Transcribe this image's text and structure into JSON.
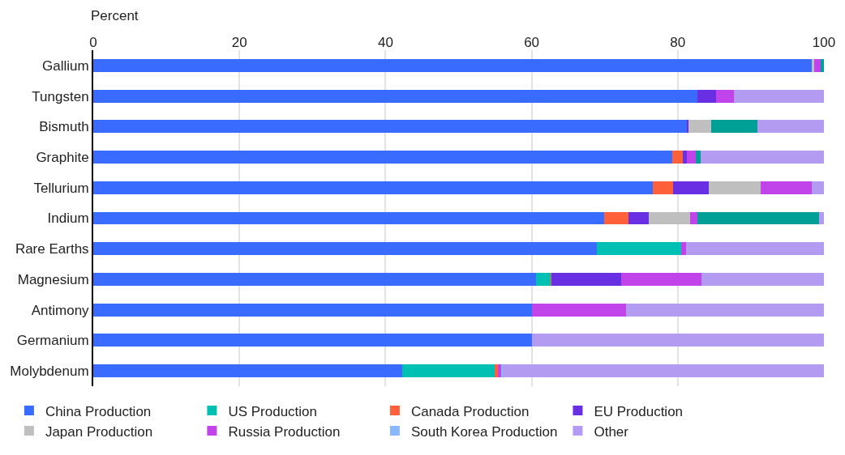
{
  "chart_data": {
    "type": "bar",
    "orientation": "horizontal",
    "stacked": true,
    "xlabel": "Percent",
    "categories": [
      "Gallium",
      "Tungsten",
      "Bismuth",
      "Graphite",
      "Tellurium",
      "Indium",
      "Rare Earths",
      "Magnesium",
      "Antimony",
      "Germanium",
      "Molybdenum"
    ],
    "series": [
      {
        "name": "China Production",
        "color": "#3a6bff",
        "values": [
          98.3,
          82.7,
          81.2,
          79.3,
          76.6,
          69.9,
          68.9,
          60.6,
          60.0,
          60.0,
          42.3
        ]
      },
      {
        "name": "US Production",
        "color": "#00bfb3",
        "values": [
          null,
          null,
          null,
          null,
          null,
          null,
          11.6,
          2.0,
          null,
          null,
          12.6
        ]
      },
      {
        "name": "Canada Production",
        "color": "#ff6039",
        "values": [
          null,
          null,
          null,
          1.4,
          2.8,
          3.3,
          null,
          0.1,
          null,
          null,
          0.5
        ]
      },
      {
        "name": "EU Production",
        "color": "#6930e3",
        "values": [
          null,
          2.5,
          0.3,
          0.5,
          4.8,
          2.8,
          null,
          9.6,
          null,
          null,
          null
        ]
      },
      {
        "name": "Japan Production",
        "color": "#bfbfbf",
        "values": [
          0.4,
          null,
          3.1,
          null,
          7.1,
          5.7,
          null,
          null,
          null,
          null,
          null
        ]
      },
      {
        "name": "Russia Production",
        "color": "#c044e9",
        "values": [
          0.9,
          2.5,
          null,
          1.3,
          7.0,
          1.0,
          0.6,
          10.9,
          12.9,
          null,
          0.5
        ]
      },
      {
        "name": "South Korea Production",
        "color": "#8ab8ff",
        "values": [
          null,
          null,
          null,
          null,
          null,
          null,
          null,
          null,
          null,
          null,
          0.2
        ]
      },
      {
        "color": "#00a096",
        "values": [
          0.4,
          null,
          6.3,
          0.6,
          null,
          16.6,
          null,
          null,
          null,
          null,
          null
        ]
      },
      {
        "name": "Other",
        "color": "#b39bf2",
        "values": [
          null,
          12.3,
          9.1,
          16.9,
          1.7,
          0.7,
          18.9,
          16.8,
          27.1,
          40.0,
          43.9
        ]
      }
    ],
    "xlim": [
      0,
      100
    ],
    "xticks": [
      0,
      20,
      40,
      60,
      80,
      100
    ],
    "grid": "x",
    "legend": "bottom"
  }
}
